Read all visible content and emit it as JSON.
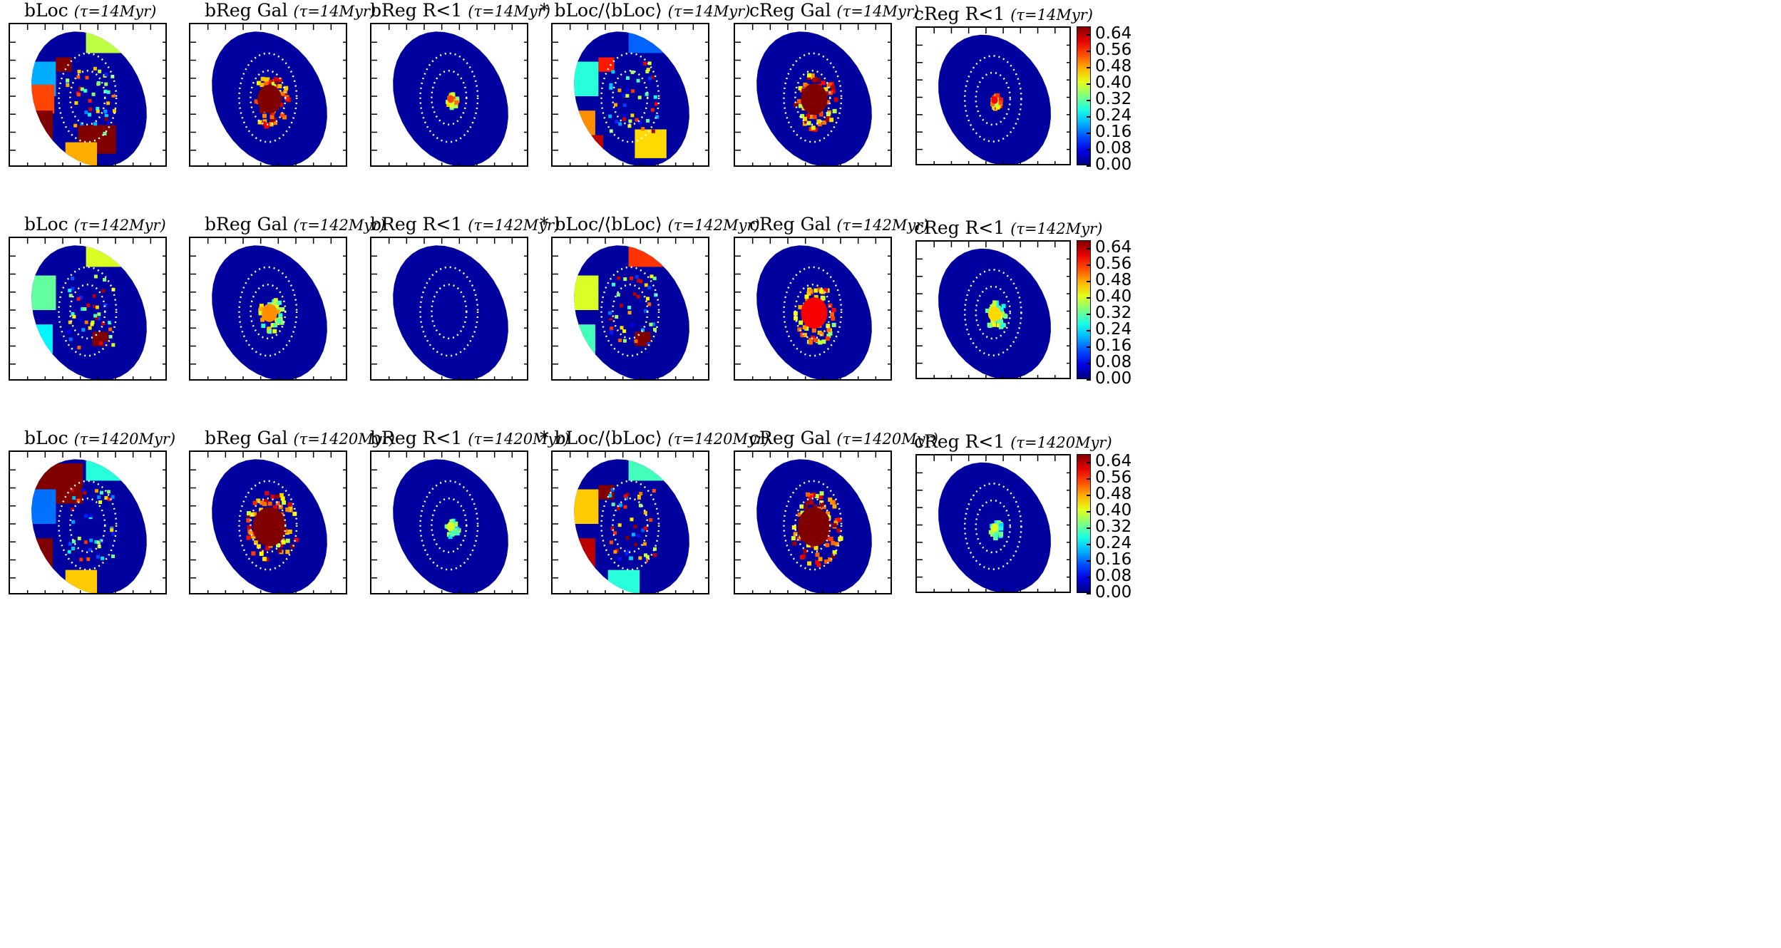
{
  "figure": {
    "rows": [
      {
        "tau_label": "τ=14Myr",
        "tau_myr": 14
      },
      {
        "tau_label": "τ=142Myr",
        "tau_myr": 142
      },
      {
        "tau_label": "τ=1420Myr",
        "tau_myr": 1420
      }
    ],
    "columns": [
      {
        "label": "bLoc"
      },
      {
        "label": "bReg Gal"
      },
      {
        "label": "bReg R<1"
      },
      {
        "label": "* bLoc/⟨bLoc⟩"
      },
      {
        "label": "cReg Gal"
      },
      {
        "label": "cReg R<1"
      }
    ],
    "colorbar_ticks": [
      "0.64",
      "0.56",
      "0.48",
      "0.40",
      "0.32",
      "0.24",
      "0.16",
      "0.08",
      "0.00"
    ]
  },
  "chart_data": {
    "type": "heatmap",
    "layout": "3 rows × 6 columns of image maps",
    "colormap": "jet",
    "color_range": [
      0.0,
      0.68
    ],
    "colorbar_ticks": [
      0.0,
      0.08,
      0.16,
      0.24,
      0.32,
      0.4,
      0.48,
      0.56,
      0.64
    ],
    "colorbar_position": "right of last column in each row",
    "overlays": "two dotted white ellipses per panel",
    "panel_titles": [
      [
        "bLoc (τ=14Myr)",
        "bReg Gal (τ=14Myr)",
        "bReg R<1 (τ=14Myr)",
        "* bLoc/⟨bLoc⟩(τ=14Myr)",
        "cReg Gal (τ=14Myr)",
        "cReg R<1 (τ=14Myr)"
      ],
      [
        "bLoc (τ=142Myr)",
        "bReg Gal (τ=142Myr)",
        "bReg R<1 (τ=142Myr)",
        "* bLoc/⟨bLoc⟩(τ=142Myr)",
        "cReg Gal (τ=142Myr)",
        "cReg R<1 (τ=142Myr)"
      ],
      [
        "bLoc (τ=1420Myr)",
        "bReg Gal (τ=1420Myr)",
        "bReg R<1 (τ=1420Myr)",
        "* bLoc/⟨bLoc⟩(τ=1420Myr)",
        "cReg Gal (τ=1420Myr)",
        "cReg R<1 (τ=1420Myr)"
      ]
    ],
    "panels": [
      {
        "row": 0,
        "col": 0,
        "background": 0.02,
        "core_level": 0.1,
        "core_size": 0.0,
        "regions": [
          {
            "value": 0.46,
            "where": "upper rim"
          },
          {
            "value": 0.38,
            "where": "upper rim"
          },
          {
            "value": 0.2,
            "where": "left rim"
          },
          {
            "value": 0.55,
            "where": "mid-left rim"
          },
          {
            "value": 0.68,
            "where": "lower-left rim"
          },
          {
            "value": 0.68,
            "where": "lower rim"
          },
          {
            "value": 0.48,
            "where": "bottom"
          },
          {
            "value": 0.68,
            "where": "upper-left clump"
          }
        ]
      },
      {
        "row": 0,
        "col": 1,
        "background": 0.02,
        "core_level": 0.68,
        "core_size": 0.55
      },
      {
        "row": 0,
        "col": 2,
        "background": 0.02,
        "core_level": 0.55,
        "core_size": 0.15
      },
      {
        "row": 0,
        "col": 3,
        "background": 0.02,
        "core_level": 0.1,
        "core_size": 0.0,
        "regions": [
          {
            "value": 0.15,
            "where": "upper rim"
          },
          {
            "value": 0.28,
            "where": "left rim"
          },
          {
            "value": 0.5,
            "where": "lower-left rim"
          },
          {
            "value": 0.64,
            "where": "bottom-left rim"
          },
          {
            "value": 0.45,
            "where": "lower-right"
          },
          {
            "value": 0.58,
            "where": "upper-left clump"
          }
        ]
      },
      {
        "row": 0,
        "col": 4,
        "background": 0.02,
        "core_level": 0.68,
        "core_size": 0.6
      },
      {
        "row": 0,
        "col": 5,
        "background": 0.02,
        "core_level": 0.6,
        "core_size": 0.15
      },
      {
        "row": 1,
        "col": 0,
        "background": 0.02,
        "core_level": 0.1,
        "core_size": 0.0,
        "regions": [
          {
            "value": 0.4,
            "where": "upper rim"
          },
          {
            "value": 0.32,
            "where": "left rim"
          },
          {
            "value": 0.25,
            "where": "lower-left rim"
          },
          {
            "value": 0.68,
            "where": "lower-right clump"
          }
        ]
      },
      {
        "row": 1,
        "col": 1,
        "background": 0.02,
        "core_level": 0.5,
        "core_size": 0.35
      },
      {
        "row": 1,
        "col": 2,
        "background": 0.02,
        "core_level": 0.02,
        "core_size": 0.0
      },
      {
        "row": 1,
        "col": 3,
        "background": 0.02,
        "core_level": 0.1,
        "core_size": 0.0,
        "regions": [
          {
            "value": 0.56,
            "where": "upper rim"
          },
          {
            "value": 0.4,
            "where": "left rim"
          },
          {
            "value": 0.3,
            "where": "lower-left rim"
          },
          {
            "value": 0.68,
            "where": "lower-right clump"
          }
        ]
      },
      {
        "row": 1,
        "col": 4,
        "background": 0.02,
        "core_level": 0.6,
        "core_size": 0.6
      },
      {
        "row": 1,
        "col": 5,
        "background": 0.02,
        "core_level": 0.45,
        "core_size": 0.3
      },
      {
        "row": 2,
        "col": 0,
        "background": 0.02,
        "core_level": 0.1,
        "core_size": 0.0,
        "regions": [
          {
            "value": 0.68,
            "where": "upper-left rim"
          },
          {
            "value": 0.16,
            "where": "left rim"
          },
          {
            "value": 0.68,
            "where": "lower-left rim"
          },
          {
            "value": 0.46,
            "where": "bottom"
          },
          {
            "value": 0.28,
            "where": "upper rim"
          }
        ]
      },
      {
        "row": 2,
        "col": 1,
        "background": 0.02,
        "core_level": 0.68,
        "core_size": 0.75
      },
      {
        "row": 2,
        "col": 2,
        "background": 0.02,
        "core_level": 0.4,
        "core_size": 0.18
      },
      {
        "row": 2,
        "col": 3,
        "background": 0.02,
        "core_level": 0.1,
        "core_size": 0.0,
        "regions": [
          {
            "value": 0.3,
            "where": "upper rim"
          },
          {
            "value": 0.46,
            "where": "left rim"
          },
          {
            "value": 0.64,
            "where": "lower-left rim"
          },
          {
            "value": 0.28,
            "where": "bottom"
          },
          {
            "value": 0.68,
            "where": "upper-left clump"
          }
        ]
      },
      {
        "row": 2,
        "col": 4,
        "background": 0.02,
        "core_level": 0.68,
        "core_size": 0.75
      },
      {
        "row": 2,
        "col": 5,
        "background": 0.02,
        "core_level": 0.4,
        "core_size": 0.18
      }
    ]
  }
}
